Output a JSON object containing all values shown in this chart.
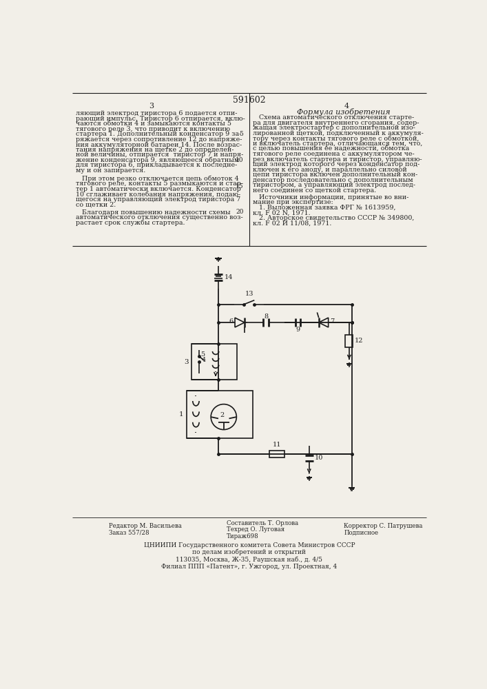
{
  "title_number": "591602",
  "page_left": "3",
  "page_right": "4",
  "bg_color": "#f2efe8",
  "line_color": "#1a1a1a",
  "text_color": "#222222",
  "left_text_lines": [
    "ляющий электрод тиристора 6 подается отпи-",
    "рающий импульс. Тиристор 6 отпирается, вклю-",
    "чаются обмотки 4 и замыкаются контакты 5",
    "тягового реле 3, что приводит к включению",
    "стартера 1. Дополнительный конденсатор 9 за-",
    "ряжается через сопротивление 12 до напряже-",
    "ния аккумуляторной батареи 14. После возрас-",
    "тания напряжения на щетке 2 до определен-",
    "ной величины, отпирается  тиристор 7 и напря-",
    "жение конденсатора 9, являющееся обратным",
    "для тиристора 6, прикладывается к последне-",
    "му и он запирается.",
    "",
    "   При этом резко отключается цепь обмоток 4",
    "тягового реле, контакты 5 размыкаются и стар-",
    "тер 1 автоматически включается. Конденсатор",
    "10 сглаживает колебания напряжения, подаю-",
    "щегося на управляющий электрод тиристора 7",
    "со щетки 2.",
    "",
    "   Благодаря повышению надежности схемы",
    "автоматического отключения существенно воз-",
    "растает срок службы стартера."
  ],
  "right_title": "Формула изобретения",
  "right_text_lines": [
    "   Схема автоматического отключения старте-",
    "ра для двигателя внутреннего сгорания, содер-",
    "жащая электростартер с дополнительной изо-",
    "лированной щеткой, подключенный к аккумуля-",
    "тору через контакты тягового реле с обмоткой,",
    "и включатель стартера, отличающаяся тем, что,",
    "с целью повышения ее надежности, обмотка",
    "тягового реле соединена с аккумулятором че-",
    "рез включатель стартера и тиристор, управляю-",
    "щий электрод которого через конденсатор под-",
    "ключен к его аноду, и параллельно силовой",
    "цепи тиристора включен дополнительный кон-",
    "денсатор последовательно с дополнительным",
    "тиристором, а управляющий электрод послед-",
    "него соединен со щеткой стартера."
  ],
  "sources_lines": [
    "   Источники информации, принятые во вни-",
    "мание при экспертизе:",
    "   1. Выложенная заявка ФРГ № 1613959,",
    "кл. F 02 N, 1971.",
    "   2. Авторское свидетельство СССР № 349800,",
    "кл. F 02 И 11/08, 1971."
  ],
  "line_numbers": [
    "5",
    "10",
    "15",
    "20"
  ],
  "bottom_left1": "Редактор М. Васильева",
  "bottom_left2": "Заказ 557/28",
  "bottom_mid1": "Составитель Т. Орлова",
  "bottom_mid2": "Техред О. Луговая",
  "bottom_mid3": "Тираж698",
  "bottom_right1": "Корректор С. Патрушева",
  "bottom_right2": "Подписное",
  "bottom_inst1": "ЦНИИПИ Государственного комитета Совета Министров СССР",
  "bottom_inst2": "по делам изобретений и открытий",
  "bottom_addr1": "113035, Москва, Ж-35, Раушская наб., д. 4/5",
  "bottom_addr2": "Филиал ППП «Патент», г. Ужгород, ул. Проектная, 4"
}
